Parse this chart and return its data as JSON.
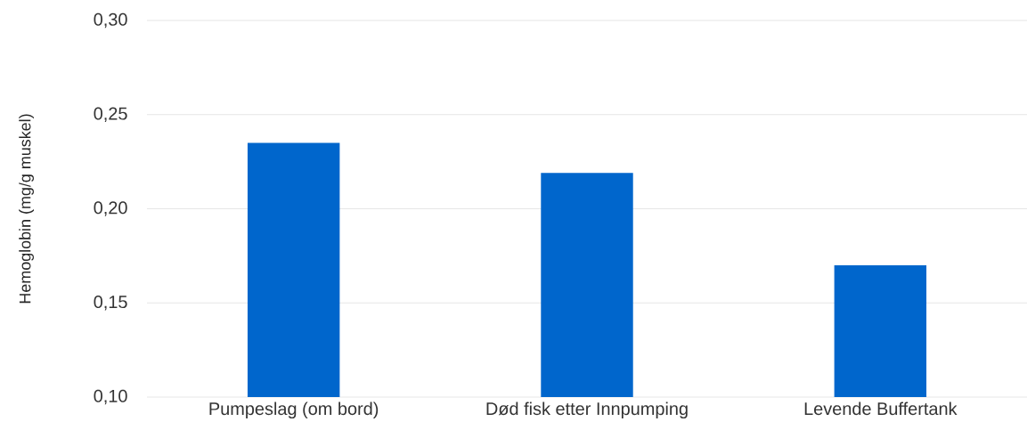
{
  "chart_data": {
    "type": "bar",
    "ylabel": "Hemoglobin (mg/g muskel)",
    "categories": [
      "Pumpeslag (om bord)",
      "Død fisk etter Innpumping",
      "Levende Buffertank"
    ],
    "values": [
      0.235,
      0.219,
      0.17
    ],
    "color": "#0066cc",
    "ylim": [
      0.1,
      0.3
    ],
    "yticks": [
      {
        "value": 0.1,
        "label": "0,10"
      },
      {
        "value": 0.15,
        "label": "0,15"
      },
      {
        "value": 0.2,
        "label": "0,20"
      },
      {
        "value": 0.25,
        "label": "0,25"
      },
      {
        "value": 0.3,
        "label": "0,30"
      }
    ],
    "grid": "y"
  }
}
